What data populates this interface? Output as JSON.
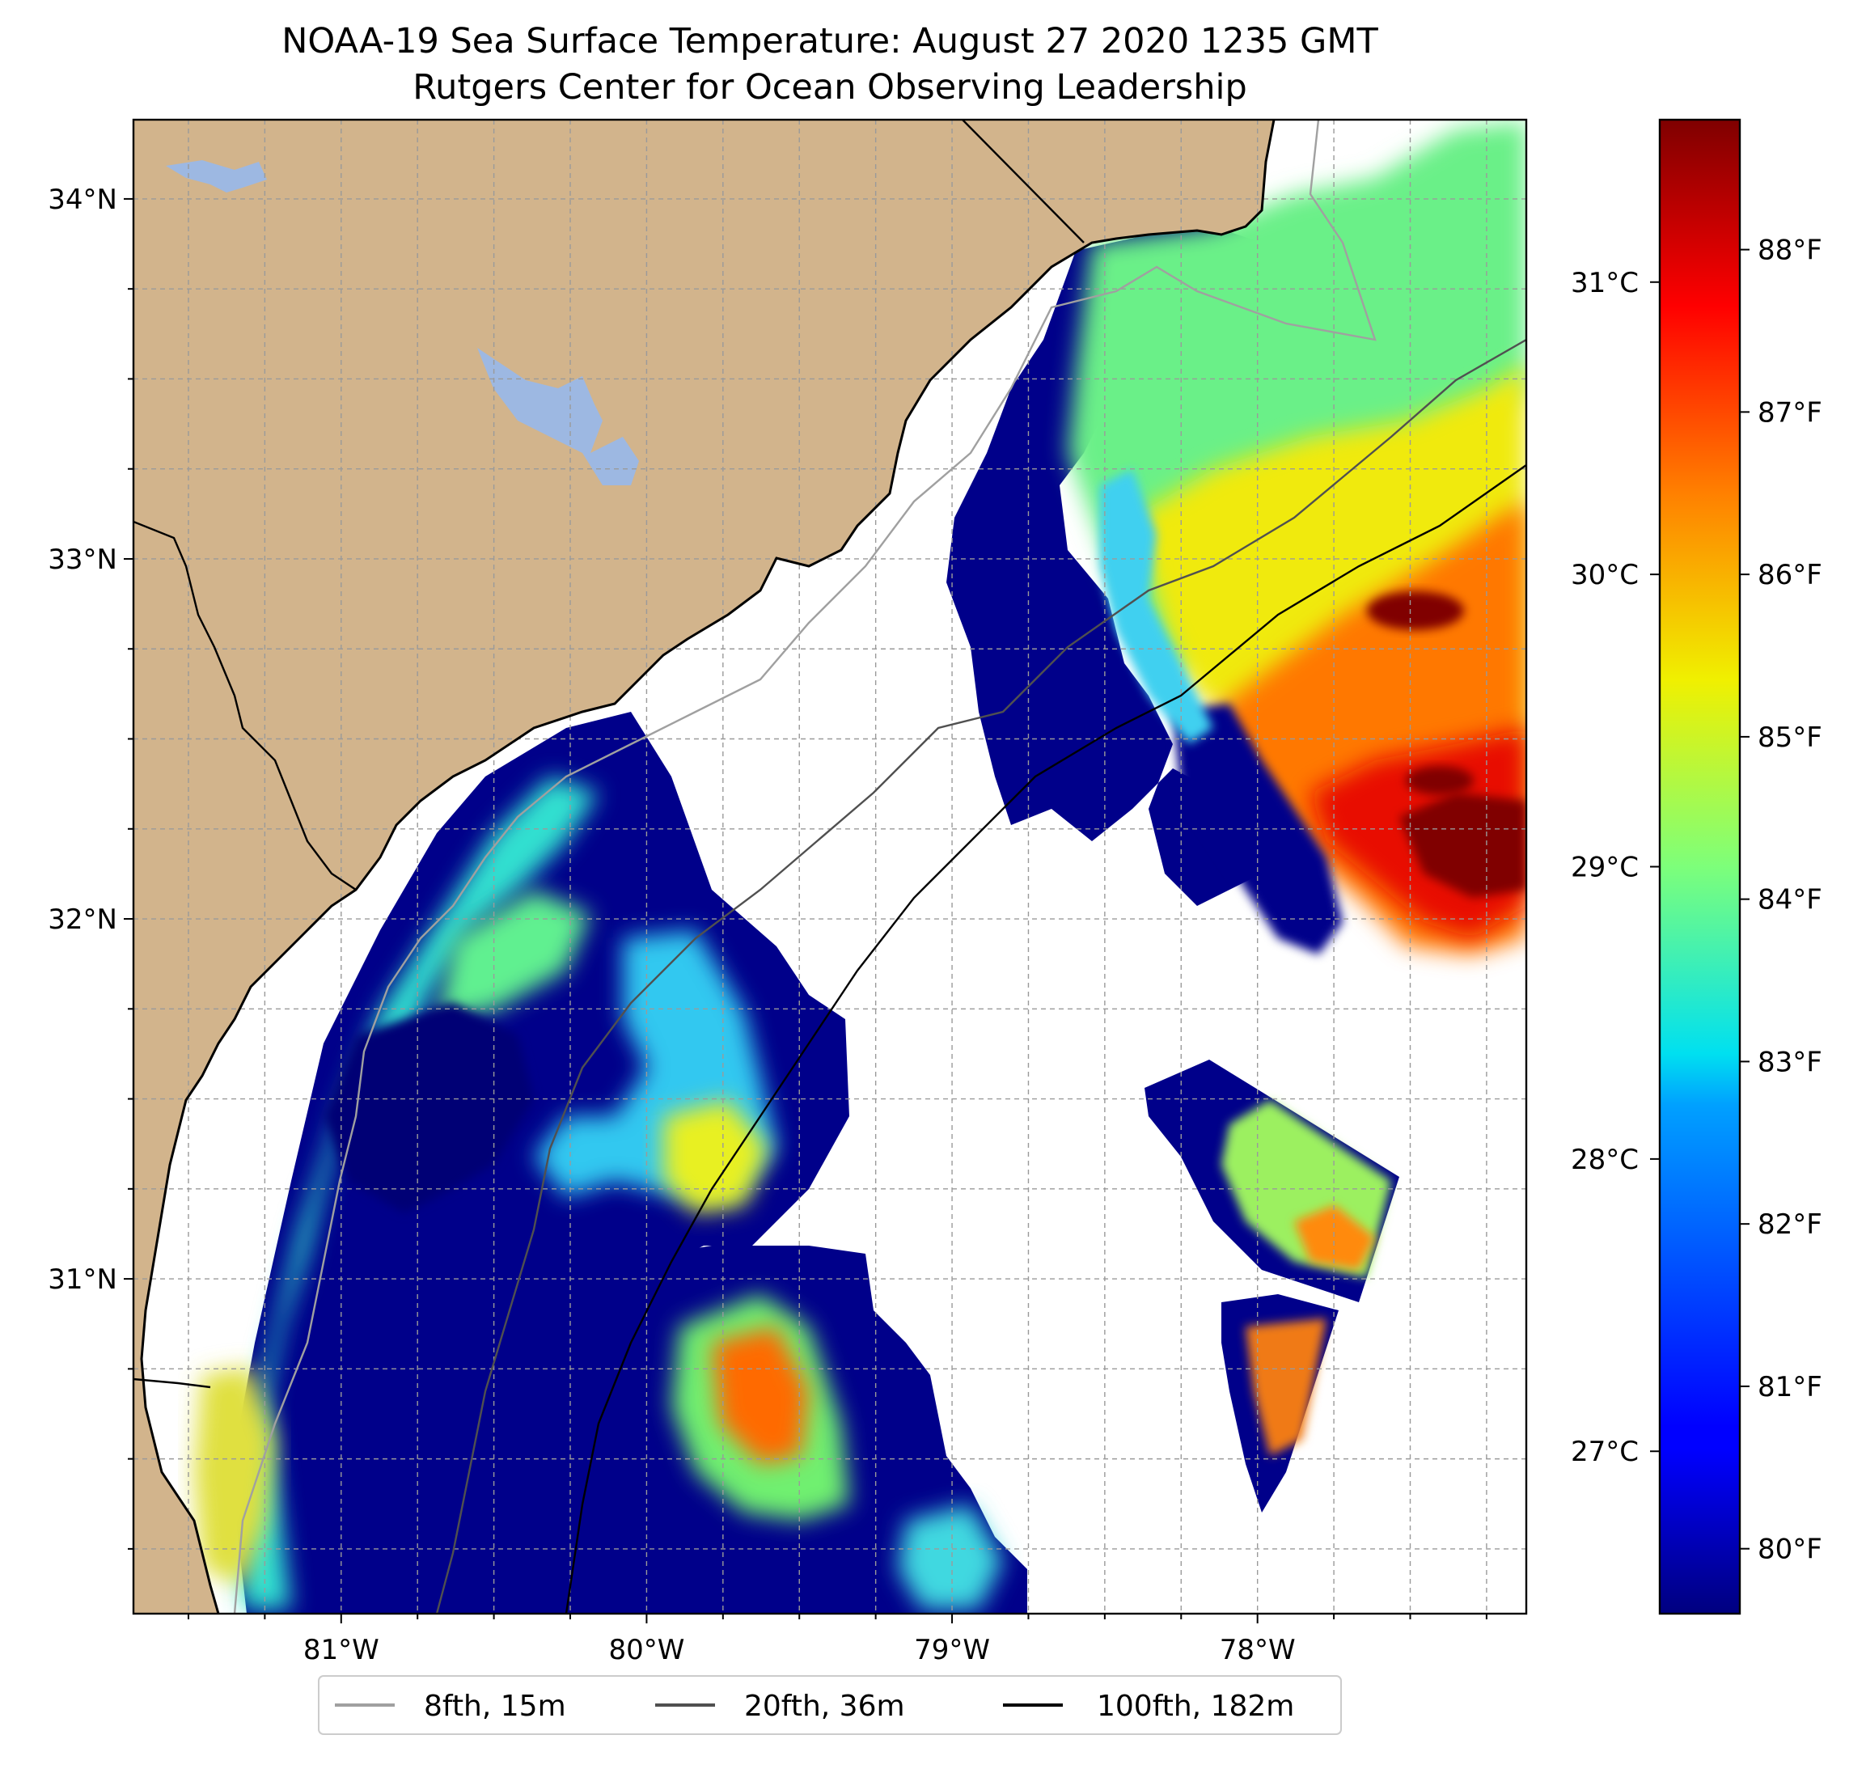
{
  "title": "NOAA-19 Sea Surface Temperature: August 27 2020 1235 GMT",
  "subtitle": "Rutgers Center for Ocean Observing Leadership",
  "map": {
    "lon_range": [
      -81.68,
      -77.12
    ],
    "lat_range": [
      30.07,
      34.22
    ],
    "lon_ticks": [
      {
        "value": -81,
        "label": "81°W"
      },
      {
        "value": -80,
        "label": "80°W"
      },
      {
        "value": -79,
        "label": "79°W"
      },
      {
        "value": -78,
        "label": "78°W"
      }
    ],
    "lat_ticks": [
      {
        "value": 34,
        "label": "34°N"
      },
      {
        "value": 33,
        "label": "33°N"
      },
      {
        "value": 32,
        "label": "32°N"
      },
      {
        "value": 31,
        "label": "31°N"
      }
    ],
    "gridlines": true,
    "colors": {
      "land": "#d2b48c",
      "lakes": "#9db8e2",
      "no_data": "#ffffff",
      "coastline": "#000000"
    }
  },
  "colorbar": {
    "colormap": "jet",
    "range_f": [
      79.6,
      88.8
    ],
    "fahrenheit_ticks": [
      {
        "value": 80,
        "label": "80°F"
      },
      {
        "value": 81,
        "label": "81°F"
      },
      {
        "value": 82,
        "label": "82°F"
      },
      {
        "value": 83,
        "label": "83°F"
      },
      {
        "value": 84,
        "label": "84°F"
      },
      {
        "value": 85,
        "label": "85°F"
      },
      {
        "value": 86,
        "label": "86°F"
      },
      {
        "value": 87,
        "label": "87°F"
      },
      {
        "value": 88,
        "label": "88°F"
      }
    ],
    "celsius_ticks": [
      {
        "value": 27,
        "label": "27°C"
      },
      {
        "value": 28,
        "label": "28°C"
      },
      {
        "value": 29,
        "label": "29°C"
      },
      {
        "value": 30,
        "label": "30°C"
      },
      {
        "value": 31,
        "label": "31°C"
      }
    ]
  },
  "legend": {
    "placement": "bottom-center",
    "entries": [
      {
        "label": "8fth, 15m",
        "color": "#a0a0a0"
      },
      {
        "label": "20fth, 36m",
        "color": "#505050"
      },
      {
        "label": "100fth, 182m",
        "color": "#000000"
      }
    ]
  }
}
